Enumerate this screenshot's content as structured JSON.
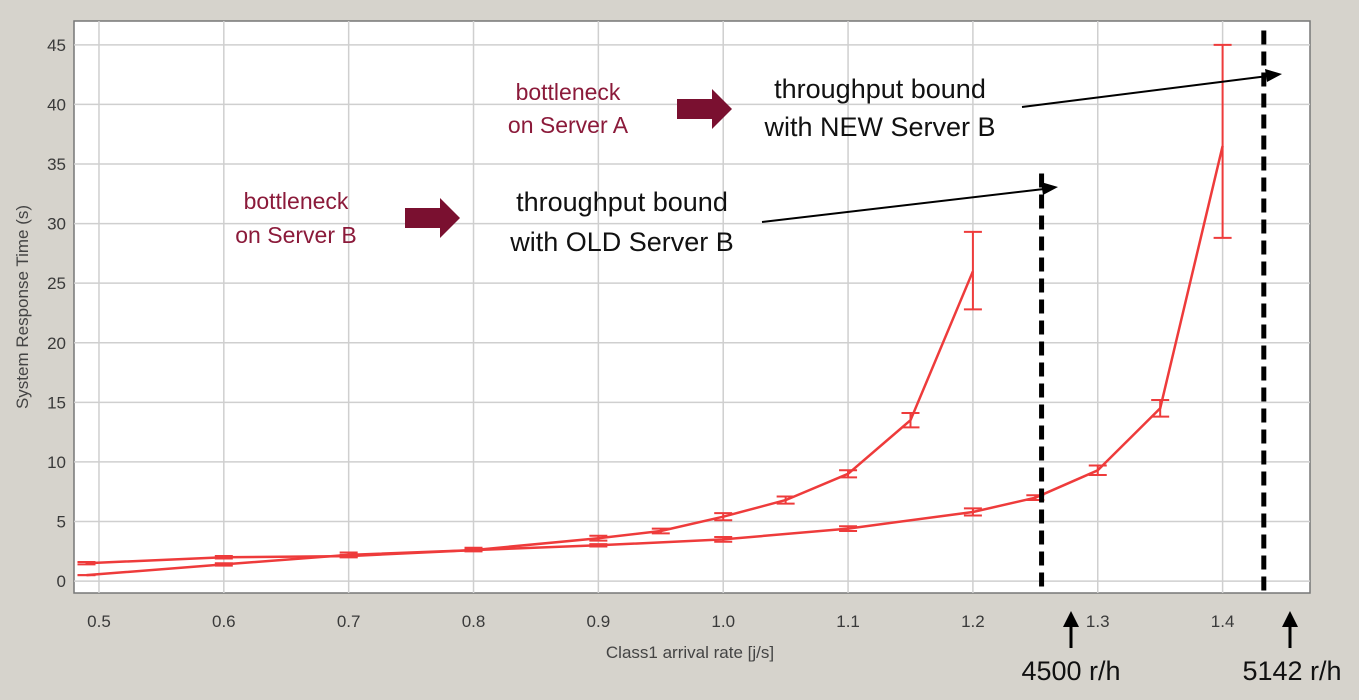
{
  "chart_data": {
    "type": "line",
    "title": "",
    "xlabel": "Class1 arrival rate [j/s]",
    "ylabel": "System Response Time (s)",
    "xlim": [
      0.48,
      1.47
    ],
    "ylim": [
      -1,
      47
    ],
    "xticks": [
      "0.5",
      "0.6",
      "0.7",
      "0.8",
      "0.9",
      "1.0",
      "1.1",
      "1.2",
      "1.3",
      "1.4"
    ],
    "yticks": [
      "0",
      "5",
      "10",
      "15",
      "20",
      "25",
      "30",
      "35",
      "40",
      "45"
    ],
    "grid": true,
    "line_color": "#ee3b3b",
    "series": [
      {
        "x": [
          0.49,
          0.6,
          0.7,
          0.8,
          0.9,
          0.95,
          1.0,
          1.05,
          1.1,
          1.15,
          1.2
        ],
        "y": [
          0.5,
          1.4,
          2.2,
          2.6,
          3.6,
          4.2,
          5.4,
          6.8,
          9.0,
          13.5,
          26.0
        ],
        "error_low": [
          0.5,
          1.3,
          2.0,
          2.5,
          3.4,
          4.0,
          5.1,
          6.5,
          8.7,
          12.9,
          22.8
        ],
        "error_high": [
          0.5,
          1.5,
          2.4,
          2.8,
          3.8,
          4.4,
          5.7,
          7.1,
          9.3,
          14.1,
          29.3
        ]
      },
      {
        "x": [
          0.49,
          0.6,
          0.7,
          0.8,
          0.9,
          1.0,
          1.1,
          1.2,
          1.25,
          1.3,
          1.35,
          1.4
        ],
        "y": [
          1.5,
          2.0,
          2.1,
          2.6,
          3.0,
          3.5,
          4.4,
          5.8,
          7.0,
          9.3,
          14.5,
          36.5
        ],
        "error_low": [
          1.4,
          1.9,
          2.0,
          2.5,
          2.9,
          3.3,
          4.2,
          5.5,
          6.8,
          8.9,
          13.8,
          28.8
        ],
        "error_high": [
          1.6,
          2.1,
          2.2,
          2.7,
          3.1,
          3.7,
          4.6,
          6.1,
          7.2,
          9.7,
          15.2,
          45.0
        ]
      }
    ],
    "vertical_lines": [
      {
        "x": 1.255,
        "y_top": 34.2,
        "style": "dashed",
        "color": "#000000"
      },
      {
        "x": 1.433,
        "y_top": 46.2,
        "style": "dashed",
        "color": "#000000"
      }
    ],
    "annotations": {
      "bottleneck_a": [
        "bottleneck",
        "on Server A"
      ],
      "bottleneck_b": [
        "bottleneck",
        "on Server B"
      ],
      "bound_new": [
        "throughput bound",
        "with NEW Server B"
      ],
      "bound_old": [
        "throughput bound",
        "with OLD Server B"
      ],
      "rate_old": "4500 r/h",
      "rate_new": "5142 r/h"
    },
    "annotation_colors": {
      "bottleneck": "#8b1a3a",
      "arrow": "#7a1030"
    }
  }
}
